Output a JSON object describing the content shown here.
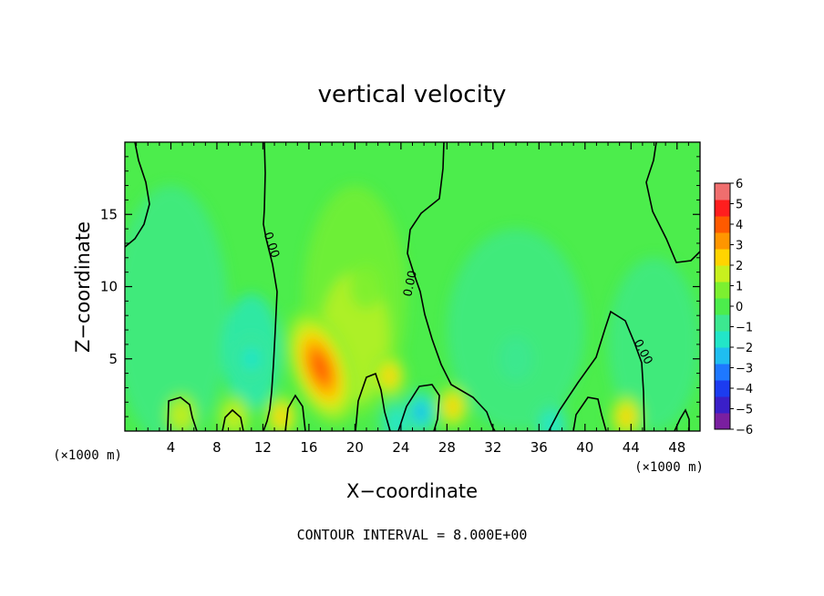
{
  "chart_data": {
    "type": "heatmap",
    "title": "vertical velocity",
    "xlabel": "X−coordinate",
    "ylabel": "Z−coordinate",
    "x_unit": "(×1000 m)",
    "y_unit": "(×1000 m)",
    "xlim": [
      0,
      50
    ],
    "ylim": [
      0,
      20
    ],
    "x_ticks": [
      4,
      8,
      12,
      16,
      20,
      24,
      28,
      32,
      36,
      40,
      44,
      48
    ],
    "y_ticks": [
      5,
      10,
      15
    ],
    "contour_interval_text": "CONTOUR INTERVAL = 8.000E+00",
    "contour_label": "0.00",
    "colorbar": {
      "ticks": [
        6,
        5,
        4,
        3,
        2,
        1,
        0,
        "−1",
        "−2",
        "−3",
        "−4",
        "−5",
        "−6"
      ],
      "levels": [
        -6,
        -5,
        -4,
        -3,
        -2,
        -1,
        0,
        1,
        2,
        3,
        4,
        5,
        6
      ],
      "colors": [
        "#7a1fa0",
        "#3a1fc8",
        "#1c3cf0",
        "#1e78ff",
        "#1fbef0",
        "#22e6c8",
        "#3ce890",
        "#4ced4c",
        "#7cf030",
        "#c8f01e",
        "#ffd400",
        "#ff9600",
        "#ff5a00",
        "#ff1e1e",
        "#f06e6e"
      ]
    },
    "features": [
      {
        "kind": "updraft",
        "x": 17.0,
        "z": 4.4,
        "w_max": 4.5
      },
      {
        "kind": "updraft",
        "x": 23.0,
        "z": 3.8,
        "w_max": 3.0
      },
      {
        "kind": "updraft",
        "x": 28.5,
        "z": 1.7,
        "w_max": 3.0
      },
      {
        "kind": "updraft",
        "x": 13.6,
        "z": 1.0,
        "w_max": 2.5
      },
      {
        "kind": "updraft",
        "x": 43.6,
        "z": 1.0,
        "w_max": 2.5
      },
      {
        "kind": "updraft",
        "x": 4.9,
        "z": 1.1,
        "w_max": 1.5
      },
      {
        "kind": "updraft",
        "x": 9.5,
        "z": 1.0,
        "w_max": 1.5
      },
      {
        "kind": "updraft",
        "x": 21.0,
        "z": 10.0,
        "w_max": 1.0
      },
      {
        "kind": "downdraft",
        "x": 11.0,
        "z": 5.0,
        "w_min": -1.6
      },
      {
        "kind": "downdraft",
        "x": 25.7,
        "z": 1.3,
        "w_min": -2.5
      },
      {
        "kind": "downdraft",
        "x": 23.6,
        "z": 0.6,
        "w_min": -2.0
      },
      {
        "kind": "downdraft",
        "x": 37.1,
        "z": 0.4,
        "w_min": -2.2
      },
      {
        "kind": "downdraft",
        "x": 34.0,
        "z": 5.0,
        "w_min": -1.2
      }
    ]
  }
}
